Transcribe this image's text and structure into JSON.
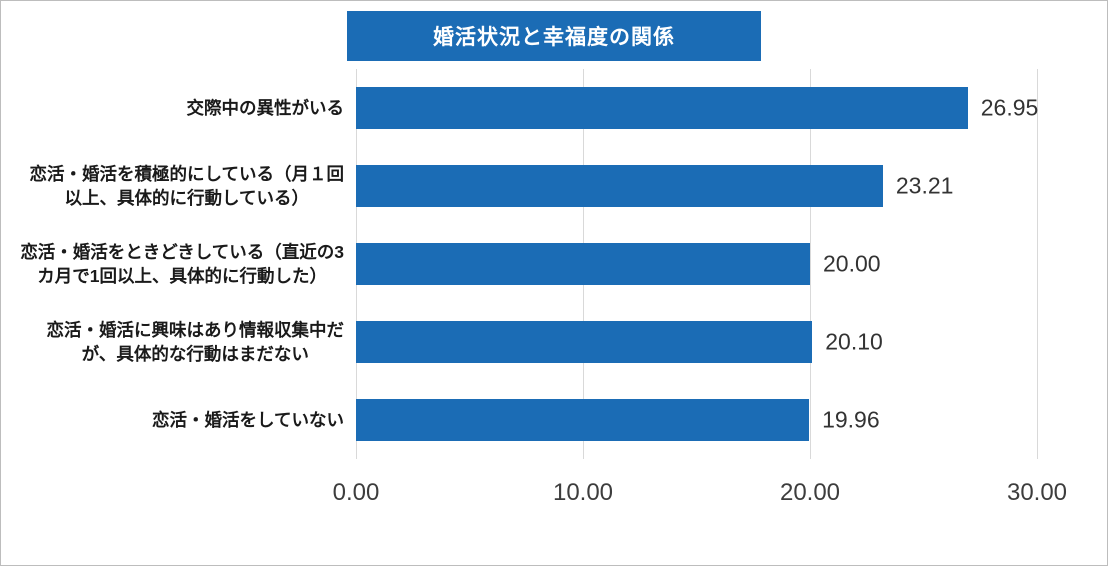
{
  "chart_data": {
    "type": "bar",
    "orientation": "horizontal",
    "title": "婚活状況と幸福度の関係",
    "categories": [
      "交際中の異性がいる",
      "恋活・婚活を積極的にしている（月１回\n以上、具体的に行動している）",
      "恋活・婚活をときどきしている（直近の3\nカ月で1回以上、具体的に行動した）",
      "恋活・婚活に興味はあり情報収集中だ\nが、具体的な行動はまだない",
      "恋活・婚活をしていない"
    ],
    "values": [
      26.95,
      23.21,
      20.0,
      20.1,
      19.96
    ],
    "value_labels": [
      "26.95",
      "23.21",
      "20.00",
      "20.10",
      "19.96"
    ],
    "xlabel": "",
    "ylabel": "",
    "xlim": [
      0,
      30
    ],
    "x_ticks": [
      {
        "label": "0.00",
        "value": 0
      },
      {
        "label": "10.00",
        "value": 10
      },
      {
        "label": "20.00",
        "value": 20
      },
      {
        "label": "30.00",
        "value": 30
      }
    ],
    "grid": true,
    "legend": "none",
    "bar_color": "#1b6cb5",
    "grid_color": "#d9d9d9",
    "title_bg_color": "#1b6cb5",
    "title_text_color": "#ffffff"
  }
}
